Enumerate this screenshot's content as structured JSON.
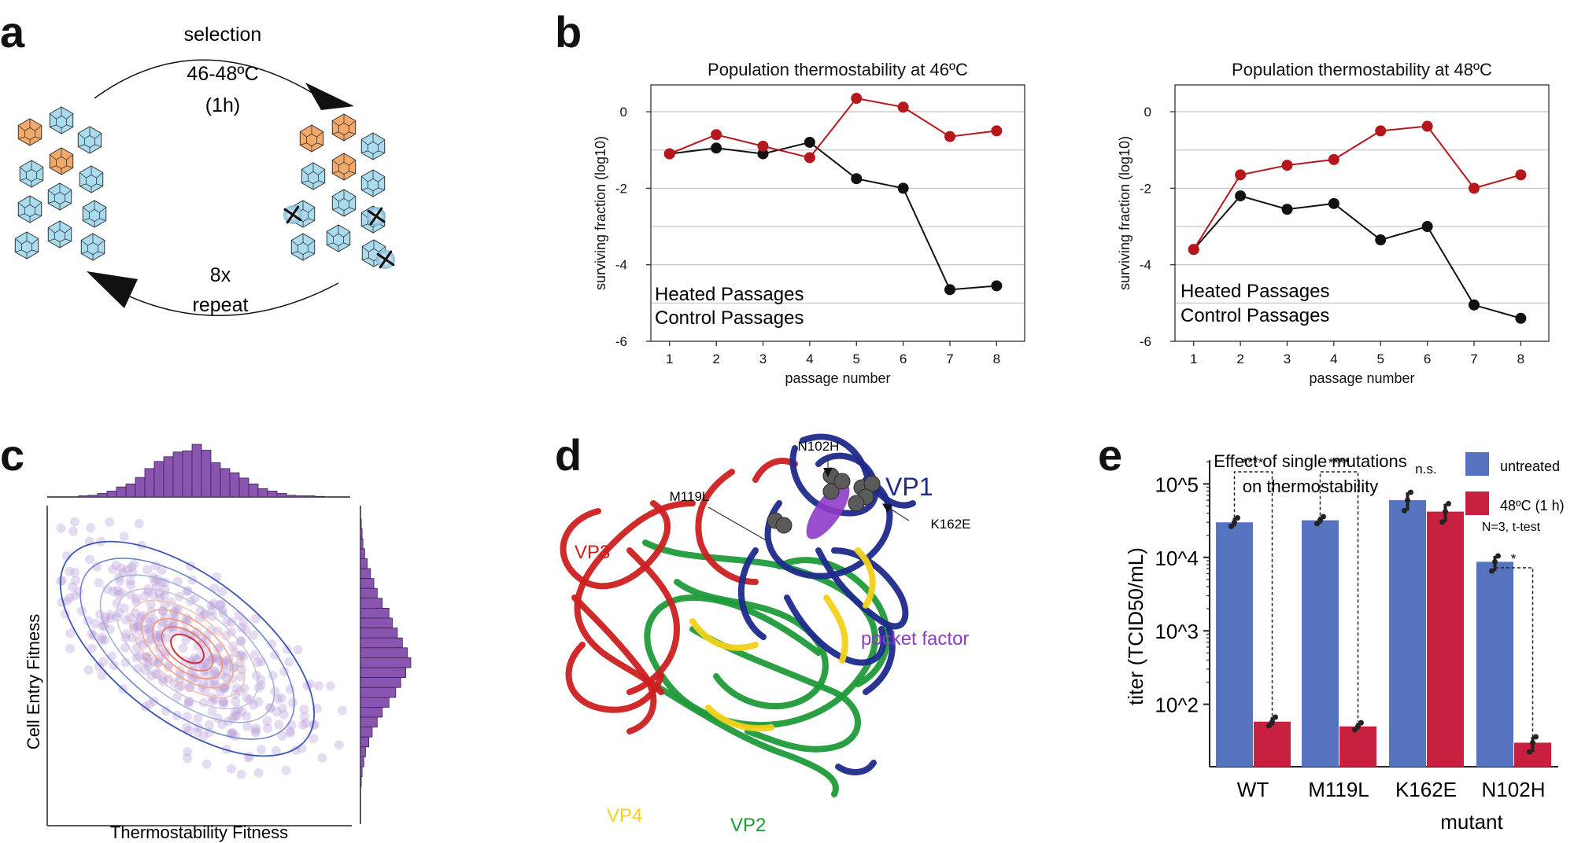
{
  "panels": {
    "a": "a",
    "b": "b",
    "c": "c",
    "d": "d",
    "e": "e"
  },
  "panel_a": {
    "top_label": "selection",
    "temp_label": "46-48ºC",
    "time_label": "(1h)",
    "bottom_label_1": "8x",
    "bottom_label_2": "repeat",
    "colors": {
      "mutant": "#f3a96a",
      "wildtype": "#a9dcef"
    }
  },
  "panel_b": {
    "legend_heated": "Heated Passages",
    "legend_control": "Control Passages",
    "heated_color": "#b5171d",
    "control_color": "#111111"
  },
  "panel_c": {
    "xlabel": "Thermostability Fitness",
    "ylabel": "Cell Entry Fitness",
    "hist_color": "#8a55b0"
  },
  "panel_d": {
    "labels": {
      "n102h": "N102H",
      "m119l": "M119L",
      "k162e": "K162E",
      "vp1": "VP1",
      "vp2": "VP2",
      "vp3": "VP3",
      "vp4": "VP4",
      "pocket": "pocket factor"
    },
    "colors": {
      "vp1": "#1f2a8c",
      "vp2": "#1f9a3a",
      "vp3": "#cc2020",
      "vp4": "#f2d21a",
      "pocket": "#8e3cc8"
    }
  },
  "panel_e": {
    "legend_untreated": "untreated",
    "legend_treated": "48ºC (1 h)",
    "legend_note": "N=3, t-test",
    "colors": {
      "untreated": "#5673bf",
      "treated": "#c8203f"
    }
  },
  "chart_data": [
    {
      "type": "line",
      "title": "Population thermostability at 46ºC",
      "xlabel": "passage number",
      "ylabel": "surviving fraction (log10)",
      "x": [
        1,
        2,
        3,
        4,
        5,
        6,
        7,
        8
      ],
      "xlim": [
        0.6,
        8.6
      ],
      "ylim": [
        -6,
        0.7
      ],
      "yticks": [
        0,
        -2,
        -4,
        -6
      ],
      "series": [
        {
          "name": "Heated Passages",
          "values": [
            -1.1,
            -0.6,
            -0.9,
            -1.2,
            0.35,
            0.12,
            -0.65,
            -0.5
          ]
        },
        {
          "name": "Control Passages",
          "values": [
            -1.1,
            -0.95,
            -1.1,
            -0.8,
            -1.75,
            -2.0,
            -4.65,
            -4.55
          ]
        }
      ]
    },
    {
      "type": "line",
      "title": "Population thermostability at 48ºC",
      "xlabel": "passage number",
      "ylabel": "surviving fraction (log10)",
      "x": [
        1,
        2,
        3,
        4,
        5,
        6,
        7,
        8
      ],
      "xlim": [
        0.6,
        8.6
      ],
      "ylim": [
        -6,
        0.7
      ],
      "yticks": [
        0,
        -2,
        -4,
        -6
      ],
      "series": [
        {
          "name": "Heated Passages",
          "values": [
            -3.6,
            -1.65,
            -1.4,
            -1.25,
            -0.5,
            -0.38,
            -2.0,
            -1.65
          ]
        },
        {
          "name": "Control Passages",
          "values": [
            -3.6,
            -2.2,
            -2.55,
            -2.4,
            -3.35,
            -3.0,
            -5.05,
            -5.4
          ]
        }
      ]
    },
    {
      "type": "scatter",
      "title": "",
      "xlabel": "Thermostability Fitness",
      "ylabel": "Cell Entry Fitness",
      "top_histogram": [
        2,
        3,
        6,
        10,
        17,
        22,
        33,
        48,
        60,
        68,
        76,
        78,
        89,
        79,
        58,
        48,
        41,
        32,
        22,
        14,
        10,
        6,
        3,
        2,
        2,
        1
      ],
      "right_histogram": [
        1,
        2,
        3,
        5,
        8,
        12,
        16,
        20,
        26,
        34,
        38,
        44,
        50,
        56,
        60,
        54,
        48,
        42,
        34,
        26,
        20,
        14,
        10,
        6,
        4,
        2,
        1
      ]
    },
    {
      "type": "bar",
      "title": "Effect of single mutations on thermostability",
      "xlabel": "mutant",
      "ylabel": "titer (TCID50/mL)",
      "yscale": "log",
      "ylim_log10": [
        1.15,
        5.4
      ],
      "yticks": [
        "10^2",
        "10^3",
        "10^4",
        "10^5"
      ],
      "categories": [
        "WT",
        "M119L",
        "K162E",
        "N102H"
      ],
      "significance": [
        "****",
        "****",
        "n.s.",
        "*"
      ],
      "series": [
        {
          "name": "untreated",
          "values": [
            30000,
            32000,
            60000,
            8700
          ]
        },
        {
          "name": "48ºC (1 h)",
          "values": [
            58,
            50,
            42000,
            30
          ]
        }
      ]
    }
  ]
}
